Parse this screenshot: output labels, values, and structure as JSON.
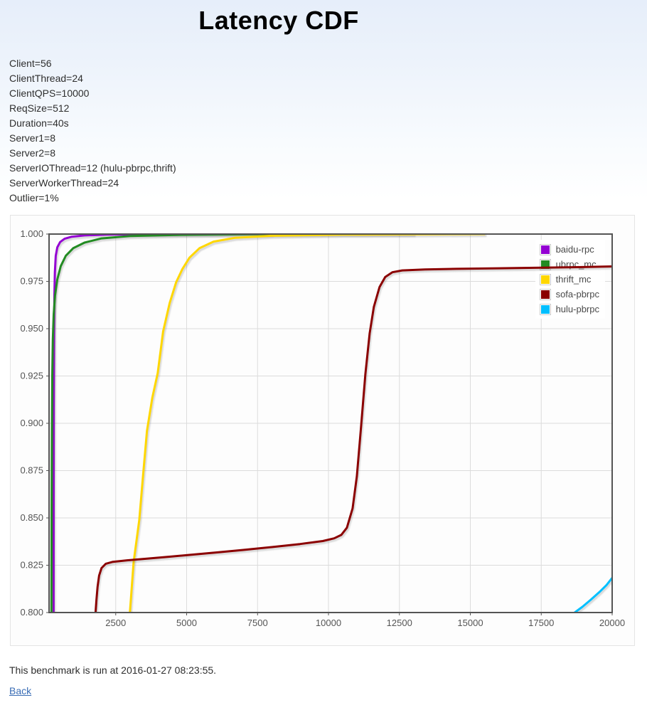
{
  "page": {
    "title": "Latency CDF"
  },
  "params": [
    "Client=56",
    "ClientThread=24",
    "ClientQPS=10000",
    "ReqSize=512",
    "Duration=40s",
    "Server1=8",
    "Server2=8",
    "ServerIOThread=12 (hulu-pbrpc,thrift)",
    "ServerWorkerThread=24",
    "Outlier=1%"
  ],
  "footer": {
    "note": "This benchmark is run at 2016-01-27 08:23:55.",
    "back_label": "Back"
  },
  "chart_data": {
    "type": "line",
    "title": "Latency CDF",
    "xlabel": "",
    "ylabel": "",
    "xlim": [
      150,
      20000
    ],
    "ylim": [
      0.8,
      1.0
    ],
    "xticks": [
      2500,
      5000,
      7500,
      10000,
      12500,
      15000,
      17500,
      20000
    ],
    "yticks": [
      0.8,
      0.825,
      0.85,
      0.875,
      0.9,
      0.925,
      0.95,
      0.975,
      1.0
    ],
    "grid": true,
    "legend_position": "top-right",
    "grid_color": "#dcdcdc",
    "axis_color": "#545454",
    "series": [
      {
        "name": "baidu-rpc",
        "color": "#9400d3",
        "points": [
          [
            310,
            0.8
          ],
          [
            314,
            0.858
          ],
          [
            319,
            0.91
          ],
          [
            327,
            0.948
          ],
          [
            338,
            0.968
          ],
          [
            355,
            0.98
          ],
          [
            385,
            0.9885
          ],
          [
            440,
            0.993
          ],
          [
            540,
            0.9958
          ],
          [
            700,
            0.9975
          ],
          [
            950,
            0.9986
          ],
          [
            1400,
            0.9993
          ],
          [
            2200,
            0.99975
          ],
          [
            3500,
            0.9999
          ],
          [
            13000,
            1.0
          ]
        ]
      },
      {
        "name": "ubrpc_mc",
        "color": "#228b22",
        "points": [
          [
            232,
            0.8
          ],
          [
            240,
            0.855
          ],
          [
            250,
            0.895
          ],
          [
            263,
            0.925
          ],
          [
            282,
            0.9445
          ],
          [
            312,
            0.9575
          ],
          [
            360,
            0.9675
          ],
          [
            440,
            0.976
          ],
          [
            560,
            0.983
          ],
          [
            740,
            0.9885
          ],
          [
            1000,
            0.9925
          ],
          [
            1400,
            0.9955
          ],
          [
            2000,
            0.9977
          ],
          [
            3000,
            0.999
          ],
          [
            4800,
            0.9996
          ],
          [
            8000,
            1.0
          ]
        ]
      },
      {
        "name": "thrift_mc",
        "color": "#ffd700",
        "points": [
          [
            3000,
            0.8
          ],
          [
            3130,
            0.8265
          ],
          [
            3330,
            0.849
          ],
          [
            3460,
            0.872
          ],
          [
            3600,
            0.896
          ],
          [
            3790,
            0.9135
          ],
          [
            3980,
            0.9265
          ],
          [
            4170,
            0.9485
          ],
          [
            4400,
            0.9635
          ],
          [
            4630,
            0.9745
          ],
          [
            4850,
            0.9815
          ],
          [
            5100,
            0.9875
          ],
          [
            5450,
            0.9925
          ],
          [
            5950,
            0.996
          ],
          [
            6700,
            0.998
          ],
          [
            8000,
            0.9991
          ],
          [
            10500,
            0.9997
          ],
          [
            15500,
            1.0
          ]
        ]
      },
      {
        "name": "sofa-pbrpc",
        "color": "#8b0000",
        "points": [
          [
            1790,
            0.8
          ],
          [
            1820,
            0.8065
          ],
          [
            1860,
            0.8135
          ],
          [
            1915,
            0.8195
          ],
          [
            2000,
            0.8235
          ],
          [
            2150,
            0.8258
          ],
          [
            2400,
            0.8268
          ],
          [
            2900,
            0.8276
          ],
          [
            3600,
            0.8285
          ],
          [
            4400,
            0.8295
          ],
          [
            5200,
            0.8306
          ],
          [
            6100,
            0.8318
          ],
          [
            7000,
            0.8331
          ],
          [
            8000,
            0.8346
          ],
          [
            9000,
            0.8362
          ],
          [
            9800,
            0.8378
          ],
          [
            10200,
            0.8392
          ],
          [
            10450,
            0.841
          ],
          [
            10650,
            0.8448
          ],
          [
            10850,
            0.855
          ],
          [
            11000,
            0.872
          ],
          [
            11150,
            0.8985
          ],
          [
            11300,
            0.926
          ],
          [
            11450,
            0.9475
          ],
          [
            11600,
            0.9615
          ],
          [
            11800,
            0.972
          ],
          [
            12000,
            0.9773
          ],
          [
            12250,
            0.9798
          ],
          [
            12600,
            0.9808
          ],
          [
            13400,
            0.9813
          ],
          [
            14500,
            0.9816
          ],
          [
            16000,
            0.9819
          ],
          [
            17500,
            0.9822
          ],
          [
            18800,
            0.9825
          ],
          [
            20000,
            0.9829
          ]
        ]
      },
      {
        "name": "hulu-pbrpc",
        "color": "#00bfff",
        "points": [
          [
            18680,
            0.8
          ],
          [
            18950,
            0.803
          ],
          [
            19250,
            0.8068
          ],
          [
            19550,
            0.8108
          ],
          [
            19800,
            0.8145
          ],
          [
            20000,
            0.8183
          ]
        ]
      }
    ]
  }
}
